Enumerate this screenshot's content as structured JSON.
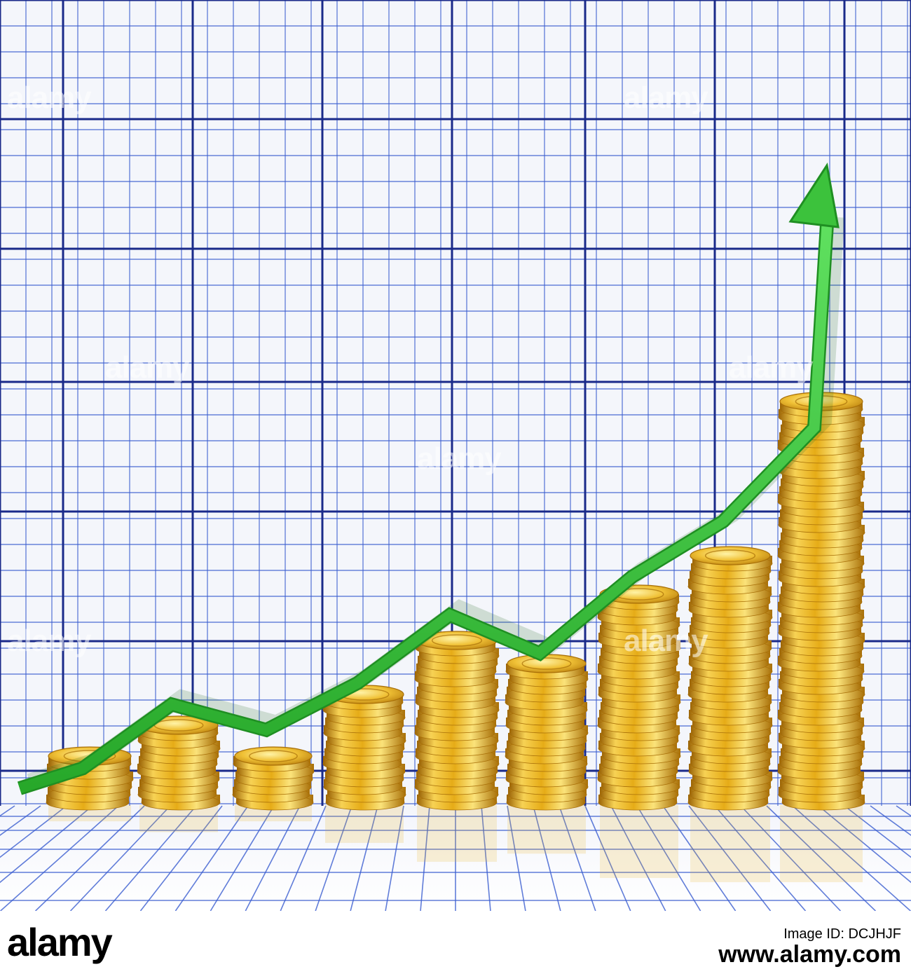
{
  "image": {
    "description_free": true,
    "colors": {
      "background": "#f4f6fb",
      "grid_major": "#1a2a8a",
      "grid_minor": "#3a5ccf",
      "coin_gold": "#e8b21e",
      "coin_dark": "#a86f08",
      "arrow_green": "#3cc23c"
    },
    "coin_stack_levels": [
      0.1,
      0.18,
      0.1,
      0.24,
      0.37,
      0.32,
      0.48,
      0.57,
      0.93
    ],
    "arrow_levels": [
      0.08,
      0.23,
      0.17,
      0.28,
      0.44,
      0.35,
      0.53,
      0.66,
      0.88
    ],
    "icons": [
      "coin-stack-icon",
      "dollar-coin-icon",
      "trend-arrow-icon"
    ]
  },
  "footer": {
    "logo_text": "alamy",
    "stock_id_label": "Image ID: DCJHJF",
    "stock_id_site": "www.alamy.com"
  },
  "watermark": {
    "text": "alamy"
  }
}
